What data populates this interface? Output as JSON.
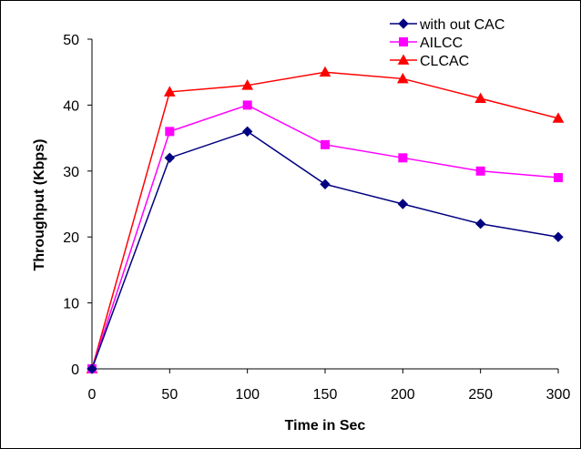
{
  "chart_data": {
    "type": "line",
    "xlabel": "Time in Sec",
    "ylabel": "Throughput (Kbps)",
    "x": [
      0,
      50,
      100,
      150,
      200,
      250,
      300
    ],
    "xlim": [
      0,
      300
    ],
    "ylim": [
      0,
      50
    ],
    "xticks": [
      0,
      50,
      100,
      150,
      200,
      250,
      300
    ],
    "yticks": [
      0,
      10,
      20,
      30,
      40,
      50
    ],
    "grid": false,
    "legend_position": "top-right",
    "series": [
      {
        "name": "with out CAC",
        "color": "#000080",
        "marker": "diamond",
        "values": [
          0,
          32,
          36,
          28,
          25,
          22,
          20
        ]
      },
      {
        "name": "AILCC",
        "color": "#FF00FF",
        "marker": "square",
        "values": [
          0,
          36,
          40,
          34,
          32,
          30,
          29
        ]
      },
      {
        "name": "CLCAC",
        "color": "#FF0000",
        "marker": "triangle",
        "values": [
          0,
          42,
          43,
          45,
          44,
          41,
          38
        ]
      }
    ]
  }
}
